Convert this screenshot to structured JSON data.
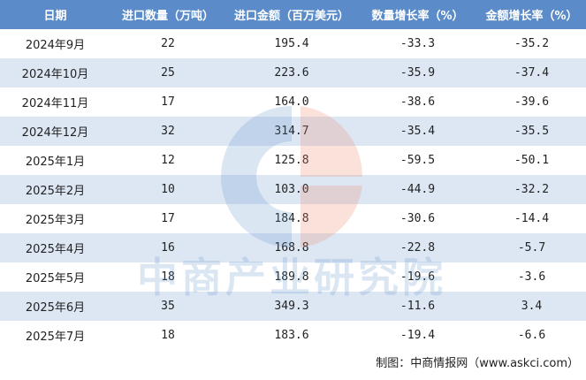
{
  "table": {
    "header": [
      "日期",
      "进口数量（万吨）",
      "进口金额（百万美元）",
      "数量增长率（%）",
      "金额增长率（%）"
    ],
    "rows": [
      [
        "2024年9月",
        "22",
        "195.4",
        "-33.3",
        "-35.2"
      ],
      [
        "2024年10月",
        "25",
        "223.6",
        "-35.9",
        "-37.4"
      ],
      [
        "2024年11月",
        "17",
        "164.0",
        "-38.6",
        "-39.6"
      ],
      [
        "2024年12月",
        "32",
        "314.7",
        "-35.4",
        "-35.5"
      ],
      [
        "2025年1月",
        "12",
        "125.8",
        "-59.5",
        "-50.1"
      ],
      [
        "2025年2月",
        "10",
        "103.0",
        "-44.9",
        "-32.2"
      ],
      [
        "2025年3月",
        "17",
        "184.8",
        "-30.6",
        "-14.4"
      ],
      [
        "2025年4月",
        "16",
        "168.8",
        "-22.8",
        "-5.7"
      ],
      [
        "2025年5月",
        "18",
        "189.8",
        "-19.6",
        "-3.6"
      ],
      [
        "2025年6月",
        "35",
        "349.3",
        "-11.6",
        "3.4"
      ],
      [
        "2025年7月",
        "18",
        "183.6",
        "-19.4",
        "-6.6"
      ]
    ]
  },
  "watermark": "中商产业研究院",
  "footer": "制图：中商情报网（www.askci.com）"
}
